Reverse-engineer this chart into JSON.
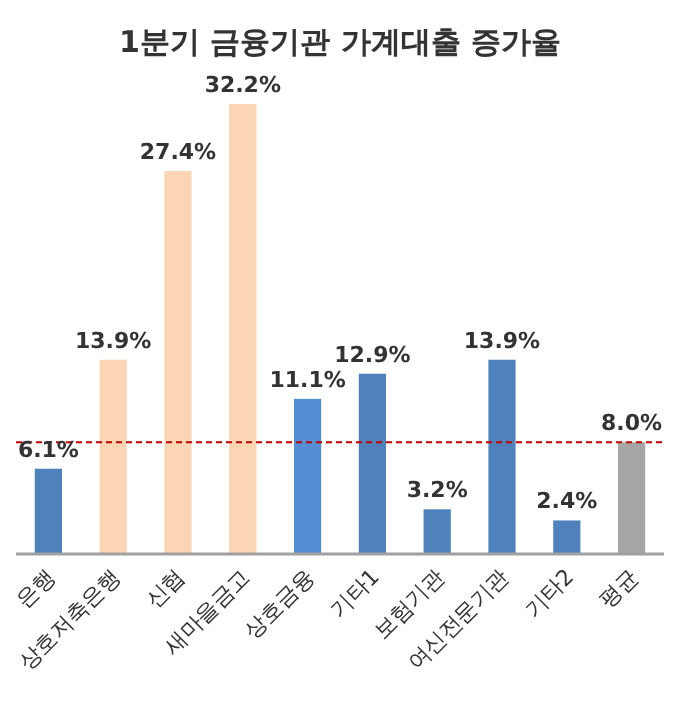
{
  "chart_data": {
    "type": "bar",
    "title": "1분기 금융기관 가계대출 증가율",
    "categories": [
      "은행",
      "상호저축은행",
      "신협",
      "새마을금고",
      "상호금융",
      "기타1",
      "보험기관",
      "여신전문기관",
      "기타2",
      "평균"
    ],
    "values": [
      6.1,
      13.9,
      27.4,
      32.2,
      11.1,
      12.9,
      3.2,
      13.9,
      2.4,
      8.0
    ],
    "colors": [
      "#4f81bd",
      "#fcd5b5",
      "#fcd5b5",
      "#fcd5b5",
      "#558ed5",
      "#4f81bd",
      "#4f81bd",
      "#4f81bd",
      "#4f81bd",
      "#a6a6a6"
    ],
    "value_labels": [
      "6.1%",
      "13.9%",
      "27.4%",
      "32.2%",
      "11.1%",
      "12.9%",
      "3.2%",
      "13.9%",
      "2.4%",
      "8.0%"
    ],
    "ref_lines": [
      {
        "axis": "y",
        "value": 8.0,
        "color": "#c00000",
        "line_style": "dashed"
      }
    ]
  }
}
